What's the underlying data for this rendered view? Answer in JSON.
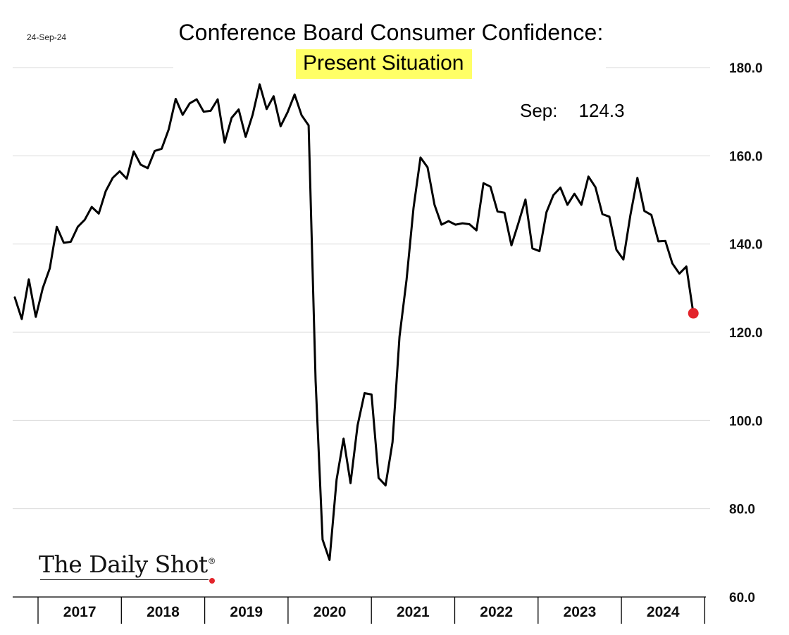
{
  "date_stamp": "24-Sep-24",
  "brand": {
    "logo_text": "The Daily Shot",
    "logo_mark": "®"
  },
  "latest": {
    "month": "Sep:",
    "value": "124.3"
  },
  "colors": {
    "line": "#000000",
    "marker": "#e3242b",
    "highlight": "#ffff66",
    "grid": "#d9d9d9"
  },
  "chart_data": {
    "type": "line",
    "title": "Conference Board Consumer Confidence:",
    "subtitle": "Present Situation",
    "xlabel": "",
    "ylabel": "",
    "x_start": "2016-10",
    "x_frequency": "monthly",
    "x_tick_labels": [
      "2017",
      "2018",
      "2019",
      "2020",
      "2021",
      "2022",
      "2023",
      "2024"
    ],
    "ylim": [
      60,
      180
    ],
    "y_ticks": [
      "60.0",
      "80.0",
      "100.0",
      "120.0",
      "140.0",
      "160.0",
      "180.0"
    ],
    "grid": "horizontal",
    "legend": "none",
    "series": [
      {
        "values": [
          127.9,
          123.0,
          132.0,
          123.5,
          130.0,
          134.5,
          143.9,
          140.3,
          140.5,
          143.9,
          145.5,
          148.4,
          146.9,
          152.0,
          155.0,
          156.5,
          154.8,
          161.0,
          158.0,
          157.2,
          161.1,
          161.6,
          166.0,
          172.9,
          169.3,
          171.9,
          172.8,
          170.0,
          170.2,
          172.8,
          163.0,
          168.6,
          170.5,
          164.3,
          169.3,
          176.2,
          170.6,
          173.5,
          166.7,
          169.9,
          173.9,
          169.2,
          166.9,
          109.0,
          73.0,
          68.4,
          86.6,
          95.9,
          85.8,
          98.9,
          106.2,
          105.9,
          87.0,
          85.3,
          95.1,
          119.0,
          131.9,
          148.2,
          159.6,
          157.4,
          148.9,
          144.4,
          145.2,
          144.4,
          144.7,
          144.5,
          143.1,
          153.8,
          153.0,
          147.4,
          147.1,
          139.7,
          144.8,
          150.1,
          139.0,
          138.4,
          147.2,
          151.1,
          152.8,
          148.9,
          151.4,
          148.9,
          155.3,
          152.9,
          146.8,
          146.2,
          138.7,
          136.5,
          146.5,
          155.0,
          147.5,
          146.6,
          140.6,
          140.7,
          135.6,
          133.3,
          134.9,
          124.3
        ]
      }
    ]
  }
}
